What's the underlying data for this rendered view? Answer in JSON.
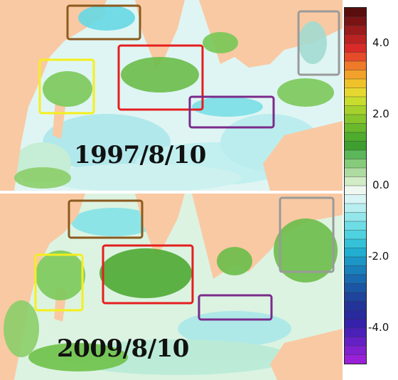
{
  "panels": [
    {
      "date_label": "1997/8/10"
    },
    {
      "date_label": "2009/8/10"
    }
  ],
  "colorbar": {
    "ticks": [
      "4.0",
      "2.0",
      "0.0",
      "-2.0",
      "-4.0"
    ],
    "tick_values": [
      4.0,
      2.0,
      0.0,
      -2.0,
      -4.0
    ],
    "range": [
      -5.0,
      5.0
    ]
  },
  "colors": {
    "land": "#f9c9a3",
    "ocean_light": "#d7f3f6",
    "ocean_cyan": "#7fe0e8",
    "vegetation": "#6fc24a",
    "box_brown": "#8b5a1e",
    "box_red": "#e41e1e",
    "box_yellow": "#f4ef1d",
    "box_purple": "#7a2a8a",
    "box_gray": "#9a9a9a"
  },
  "region_boxes": [
    "brown",
    "red",
    "yellow",
    "purple",
    "gray"
  ]
}
